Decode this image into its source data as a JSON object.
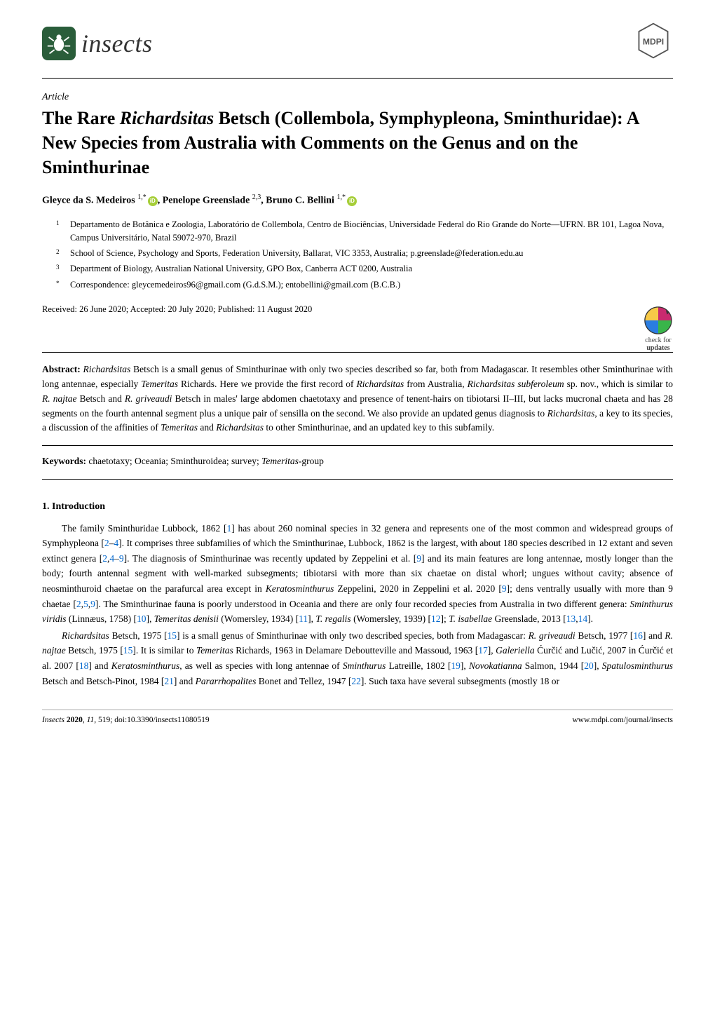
{
  "journal": {
    "name": "insects",
    "logo_bg": "#2a5d3a",
    "mdpi_text": "MDPI"
  },
  "article_type": "Article",
  "title_parts": {
    "pre": "The Rare ",
    "genus": "Richardsitas",
    "post": " Betsch (Collembola, Symphypleona, Sminthuridae): A New Species from Australia with Comments on the Genus and on the Sminthurinae"
  },
  "authors": [
    {
      "name": "Gleyce da S. Medeiros",
      "marks": "1,*",
      "orcid": true
    },
    {
      "name": "Penelope Greenslade",
      "marks": "2,3",
      "orcid": false
    },
    {
      "name": "Bruno C. Bellini",
      "marks": "1,*",
      "orcid": true
    }
  ],
  "affiliations": [
    {
      "num": "1",
      "text": "Departamento de Botânica e Zoologia, Laboratório de Collembola, Centro de Biociências, Universidade Federal do Rio Grande do Norte—UFRN. BR 101, Lagoa Nova, Campus Universitário, Natal 59072-970, Brazil"
    },
    {
      "num": "2",
      "text": "School of Science, Psychology and Sports, Federation University, Ballarat, VIC 3353, Australia; p.greenslade@federation.edu.au"
    },
    {
      "num": "3",
      "text": "Department of Biology, Australian National University, GPO Box, Canberra ACT 0200, Australia"
    },
    {
      "num": "*",
      "text": "Correspondence: gleycemedeiros96@gmail.com (G.d.S.M.); entobellini@gmail.com (B.C.B.)"
    }
  ],
  "dates": "Received: 26 June 2020; Accepted: 20 July 2020; Published: 11 August 2020",
  "check_updates": {
    "line1": "check for",
    "line2": "updates"
  },
  "abstract": {
    "label": "Abstract:",
    "text": "Richardsitas Betsch is a small genus of Sminthurinae with only two species described so far, both from Madagascar. It resembles other Sminthurinae with long antennae, especially Temeritas Richards. Here we provide the first record of Richardsitas from Australia, Richardsitas subferoleum sp. nov., which is similar to R. najtae Betsch and R. griveaudi Betsch in males' large abdomen chaetotaxy and presence of tenent-hairs on tibiotarsi II–III, but lacks mucronal chaeta and has 28 segments on the fourth antennal segment plus a unique pair of sensilla on the second. We also provide an updated genus diagnosis to Richardsitas, a key to its species, a discussion of the affinities of Temeritas and Richardsitas to other Sminthurinae, and an updated key to this subfamily."
  },
  "keywords": {
    "label": "Keywords:",
    "items": [
      "chaetotaxy",
      "Oceania",
      "Sminthuroidea",
      "survey",
      "Temeritas-group"
    ]
  },
  "section1": {
    "heading": "1. Introduction",
    "para1_html": "The family Sminthuridae Lubbock, 1862 [<span class='ref'>1</span>] has about 260 nominal species in 32 genera and represents one of the most common and widespread groups of Symphypleona [<span class='ref'>2</span>–<span class='ref'>4</span>]. It comprises three subfamilies of which the Sminthurinae, Lubbock, 1862 is the largest, with about 180 species described in 12 extant and seven extinct genera [<span class='ref'>2</span>,<span class='ref'>4</span>–<span class='ref'>9</span>]. The diagnosis of Sminthurinae was recently updated by Zeppelini et al. [<span class='ref'>9</span>] and its main features are long antennae, mostly longer than the body; fourth antennal segment with well-marked subsegments; tibiotarsi with more than six chaetae on distal whorl; ungues without cavity; absence of neosminthuroid chaetae on the parafurcal area except in <span class='sci'>Keratosminthurus</span> Zeppelini, 2020 in Zeppelini et al. 2020 [<span class='ref'>9</span>]; dens ventrally usually with more than 9 chaetae [<span class='ref'>2</span>,<span class='ref'>5</span>,<span class='ref'>9</span>]. The Sminthurinae fauna is poorly understood in Oceania and there are only four recorded species from Australia in two different genera: <span class='sci'>Sminthurus viridis</span> (Linnæus, 1758) [<span class='ref'>10</span>], <span class='sci'>Temeritas denisii</span> (Womersley, 1934) [<span class='ref'>11</span>], <span class='sci'>T. regalis</span> (Womersley, 1939) [<span class='ref'>12</span>]; <span class='sci'>T. isabellae</span> Greenslade, 2013 [<span class='ref'>13</span>,<span class='ref'>14</span>].",
    "para2_html": "<span class='sci'>Richardsitas</span> Betsch, 1975 [<span class='ref'>15</span>] is a small genus of Sminthurinae with only two described species, both from Madagascar: <span class='sci'>R. griveaudi</span> Betsch, 1977 [<span class='ref'>16</span>] and <span class='sci'>R. najtae</span> Betsch, 1975 [<span class='ref'>15</span>]. It is similar to <span class='sci'>Temeritas</span> Richards, 1963 in Delamare Deboutteville and Massoud, 1963 [<span class='ref'>17</span>], <span class='sci'>Galeriella</span> Ćurčić and Lučić, 2007 in Ćurčić et al. 2007 [<span class='ref'>18</span>] and <span class='sci'>Keratosminthurus</span>, as well as species with long antennae of <span class='sci'>Sminthurus</span> Latreille, 1802 [<span class='ref'>19</span>], <span class='sci'>Novokatianna</span> Salmon, 1944 [<span class='ref'>20</span>], <span class='sci'>Spatulosminthurus</span> Betsch and Betsch-Pinot, 1984 [<span class='ref'>21</span>] and <span class='sci'>Pararrhopalites</span> Bonet and Tellez, 1947 [<span class='ref'>22</span>]. Such taxa have several subsegments (mostly 18 or"
  },
  "footer": {
    "left_html": "<span class='sci'>Insects</span> <b>2020</b>, <span class='sci'>11</span>, 519; doi:10.3390/insects11080519",
    "right": "www.mdpi.com/journal/insects"
  },
  "colors": {
    "ref_link": "#0066cc",
    "orcid_bg": "#a6ce39",
    "text": "#000000",
    "bg": "#ffffff"
  }
}
